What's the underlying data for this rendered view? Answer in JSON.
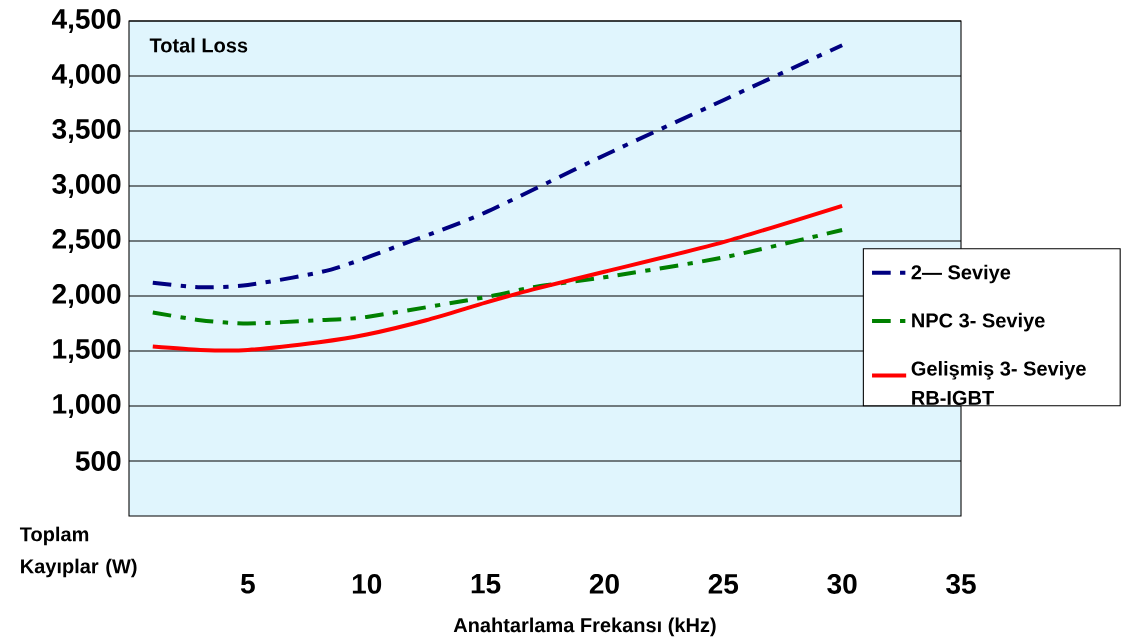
{
  "chart_data": {
    "type": "line",
    "title": "Total Loss",
    "xlabel": "Anahtarlama Frekansı (kHz)",
    "ylabel": "Toplam Kayıplar (W)",
    "xlim": [
      0,
      35
    ],
    "xticks": [
      5,
      10,
      15,
      20,
      25,
      30,
      35
    ],
    "ylim": [
      0,
      4500
    ],
    "yticks": [
      {
        "value": 500,
        "label": "500"
      },
      {
        "value": 1000,
        "label": "1,000"
      },
      {
        "value": 1500,
        "label": "1,500"
      },
      {
        "value": 2000,
        "label": "2,000"
      },
      {
        "value": 2500,
        "label": "2,500"
      },
      {
        "value": 3000,
        "label": "3,000"
      },
      {
        "value": 3500,
        "label": "3,500"
      },
      {
        "value": 4000,
        "label": "4,000"
      },
      {
        "value": 4500,
        "label": "4,500"
      }
    ],
    "grid": "y",
    "legend": "right",
    "series": [
      {
        "name": "2— Seviye",
        "color": "#000080",
        "line_style": "dashed",
        "x": [
          1,
          3,
          5,
          8.5,
          12,
          15,
          20,
          25,
          30
        ],
        "values": [
          2120,
          2080,
          2100,
          2240,
          2510,
          2760,
          3280,
          3780,
          4280
        ]
      },
      {
        "name": "NPC 3- Seviye",
        "color": "#008000",
        "line_style": "dashed",
        "x": [
          1,
          3,
          5,
          8,
          10,
          15,
          17,
          20,
          25,
          30
        ],
        "values": [
          1850,
          1780,
          1750,
          1780,
          1810,
          1990,
          2080,
          2170,
          2350,
          2600
        ]
      },
      {
        "name": "Gelişmiş 3- Seviye RB-IGBT",
        "color": "#ff0000",
        "line_style": "solid",
        "x": [
          1,
          3,
          5,
          8,
          10,
          12.5,
          15,
          17,
          20,
          25,
          30
        ],
        "values": [
          1540,
          1510,
          1510,
          1580,
          1650,
          1780,
          1940,
          2060,
          2220,
          2490,
          2820
        ]
      }
    ]
  }
}
